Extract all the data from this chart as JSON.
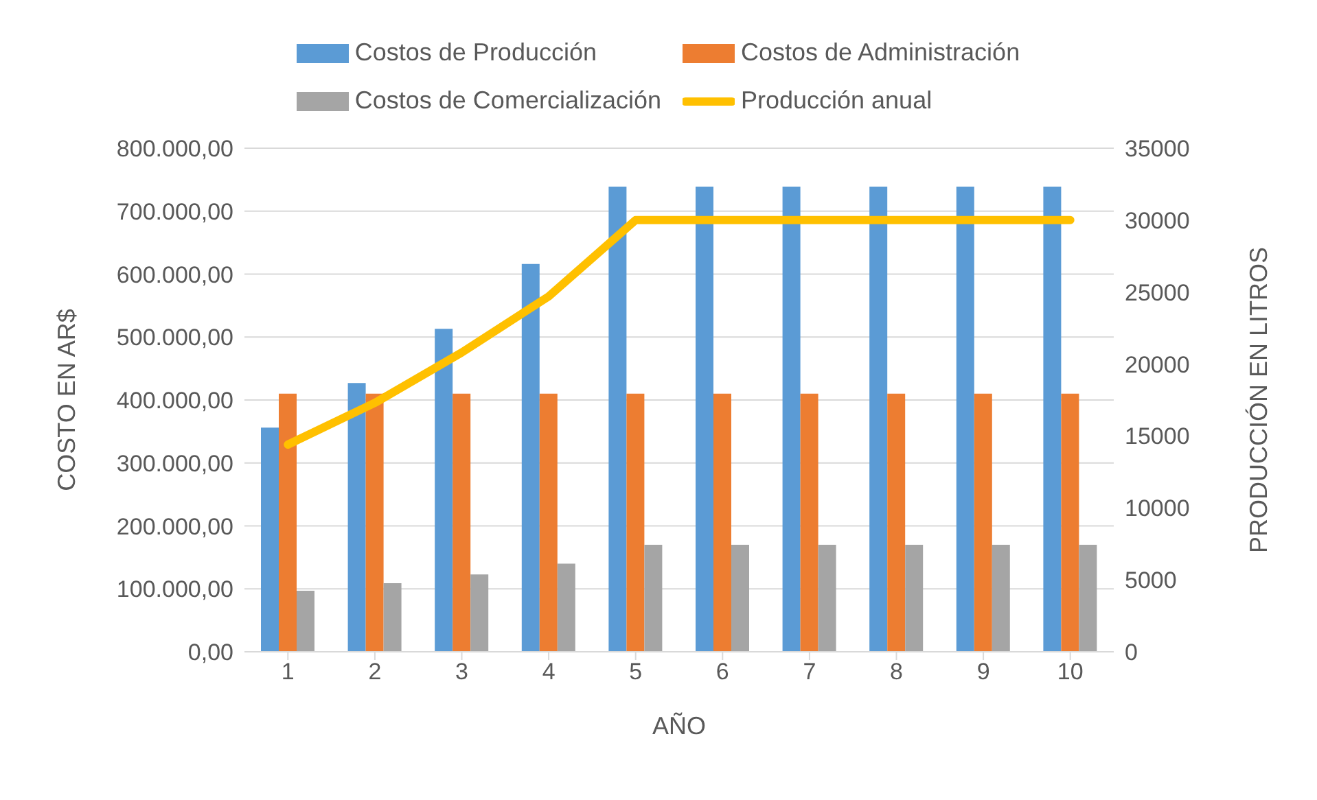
{
  "chart_data": {
    "type": "bar",
    "categories": [
      "1",
      "2",
      "3",
      "4",
      "5",
      "6",
      "7",
      "8",
      "9",
      "10"
    ],
    "series": [
      {
        "name": "Costos de Producción",
        "color": "#5b9bd5",
        "values": [
          356000,
          427000,
          513000,
          616000,
          739000,
          739000,
          739000,
          739000,
          739000,
          739000
        ]
      },
      {
        "name": "Costos de Administración",
        "color": "#ed7d31",
        "values": [
          410000,
          410000,
          410000,
          410000,
          410000,
          410000,
          410000,
          410000,
          410000,
          410000
        ]
      },
      {
        "name": "Costos de Comercialización",
        "color": "#a5a5a5",
        "values": [
          97000,
          109000,
          123000,
          140000,
          170000,
          170000,
          170000,
          170000,
          170000,
          170000
        ]
      },
      {
        "name": "Producción anual",
        "color": "#ffc000",
        "type": "line",
        "axis": "y2",
        "values": [
          14400,
          17300,
          20800,
          24700,
          30000,
          30000,
          30000,
          30000,
          30000,
          30000
        ]
      }
    ],
    "xlabel": "AÑO",
    "ylabel": "COSTO EN AR$",
    "y2label": "PRODUCCIÓN EN LITROS",
    "ylim": [
      0,
      800000
    ],
    "yticks": [
      {
        "value": 0,
        "label": "0,00"
      },
      {
        "value": 100000,
        "label": "100.000,00"
      },
      {
        "value": 200000,
        "label": "200.000,00"
      },
      {
        "value": 300000,
        "label": "300.000,00"
      },
      {
        "value": 400000,
        "label": "400.000,00"
      },
      {
        "value": 500000,
        "label": "500.000,00"
      },
      {
        "value": 600000,
        "label": "600.000,00"
      },
      {
        "value": 700000,
        "label": "700.000,00"
      },
      {
        "value": 800000,
        "label": "800.000,00"
      }
    ],
    "y2lim": [
      0,
      35000
    ],
    "y2ticks": [
      0,
      5000,
      10000,
      15000,
      20000,
      25000,
      30000,
      35000
    ],
    "grid": "y",
    "legend": "top",
    "marker": "none"
  }
}
